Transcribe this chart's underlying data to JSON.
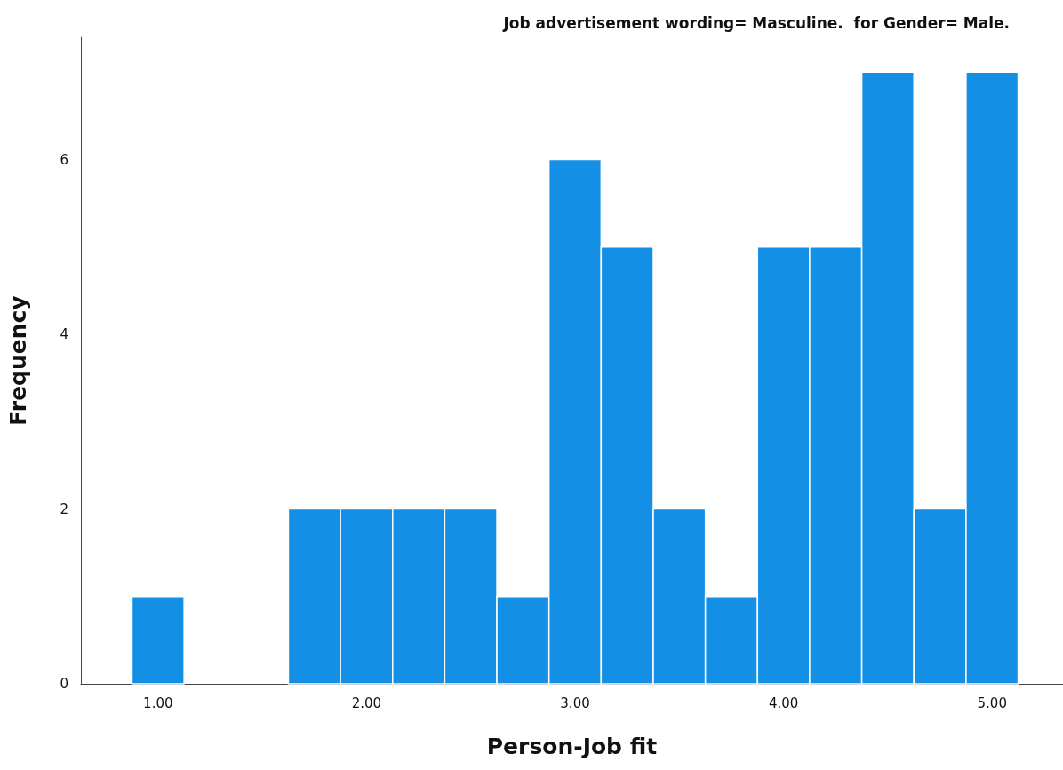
{
  "chart_data": {
    "type": "histogram",
    "title": "Job advertisement wording= Masculine.  for Gender= Male.",
    "xlabel": "Person-Job fit",
    "ylabel": "Frequency",
    "bins": [
      0.875,
      1.125,
      1.375,
      1.625,
      1.875,
      2.125,
      2.375,
      2.625,
      2.875,
      3.125,
      3.375,
      3.625,
      3.875,
      4.125,
      4.375,
      4.625,
      4.875,
      5.125
    ],
    "values": [
      1,
      0,
      0,
      2,
      2,
      2,
      2,
      1,
      6,
      5,
      2,
      1,
      5,
      5,
      7,
      2,
      7
    ],
    "color": "#1390e6",
    "xlim": [
      0.63,
      5.34
    ],
    "xticks": [
      {
        "value": 1,
        "label": "1.00"
      },
      {
        "value": 2,
        "label": "2.00"
      },
      {
        "value": 3,
        "label": "3.00"
      },
      {
        "value": 4,
        "label": "4.00"
      },
      {
        "value": 5,
        "label": "5.00"
      }
    ],
    "ylim": [
      0,
      7.4
    ],
    "yticks": [
      0,
      2,
      4,
      6
    ],
    "grid": false
  }
}
